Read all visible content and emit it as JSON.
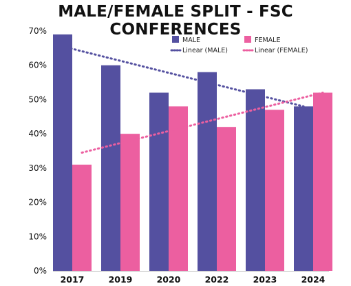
{
  "chart_data": {
    "type": "bar",
    "title": "MALE/FEMALE SPLIT - FSC CONFERENCES",
    "categories": [
      "2017",
      "2019",
      "2020",
      "2022",
      "2023",
      "2024"
    ],
    "series": [
      {
        "name": "MALE",
        "values": [
          69,
          60,
          52,
          58,
          53,
          48
        ]
      },
      {
        "name": "FEMALE",
        "values": [
          31,
          40,
          48,
          42,
          47,
          52
        ]
      }
    ],
    "trendlines": [
      {
        "name": "Linear (MALE)",
        "of_series": "MALE",
        "start": 65.5,
        "end": 48
      },
      {
        "name": "Linear (FEMALE)",
        "of_series": "FEMALE",
        "start": 34.5,
        "end": 52
      }
    ],
    "ylim": [
      0,
      70
    ],
    "yticks": [
      "0%",
      "10%",
      "20%",
      "30%",
      "40%",
      "50%",
      "60%",
      "70%"
    ],
    "ytick_values": [
      0,
      10,
      20,
      30,
      40,
      50,
      60,
      70
    ],
    "grid": false,
    "legend_position": "top-right",
    "colors": {
      "male": "#5450a0",
      "female": "#ec5fa0"
    }
  }
}
